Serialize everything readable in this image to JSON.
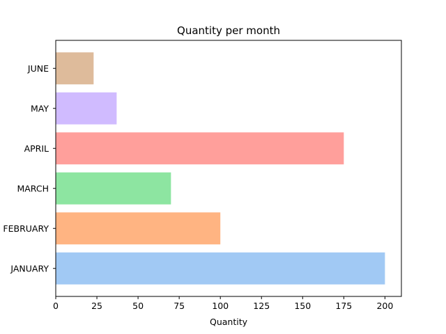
{
  "chart_data": {
    "type": "bar",
    "orientation": "horizontal",
    "title": "Quantity per month",
    "xlabel": "Quantity",
    "ylabel": "",
    "categories": [
      "JANUARY",
      "FEBRUARY",
      "MARCH",
      "APRIL",
      "MAY",
      "JUNE"
    ],
    "values": [
      200,
      100,
      70,
      175,
      37,
      23
    ],
    "colors": [
      "#a1c9f4",
      "#ffb482",
      "#8de5a1",
      "#ff9f9b",
      "#d0bbff",
      "#debb9b"
    ],
    "xlim": [
      0,
      210
    ],
    "xticks": [
      "0",
      "25",
      "50",
      "75",
      "100",
      "125",
      "150",
      "175",
      "200"
    ],
    "grid": false,
    "legend": "none"
  }
}
